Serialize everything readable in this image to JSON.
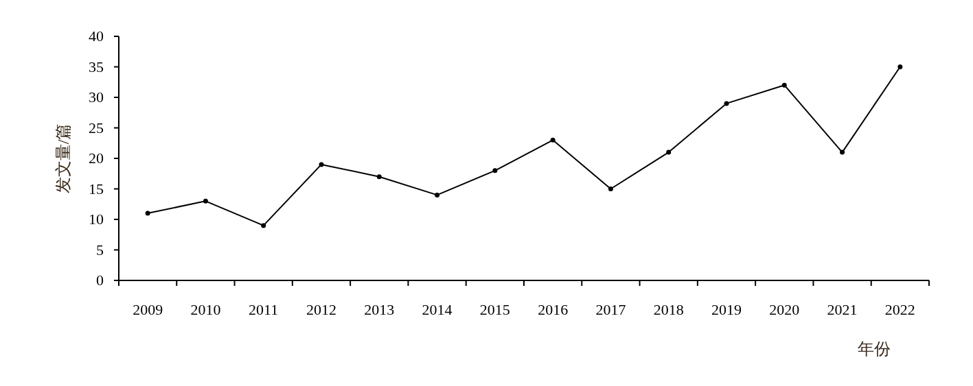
{
  "chart_data": {
    "type": "line",
    "xlabel": "年份",
    "ylabel": "发文量/篇",
    "categories": [
      "2009",
      "2010",
      "2011",
      "2012",
      "2013",
      "2014",
      "2015",
      "2016",
      "2017",
      "2018",
      "2019",
      "2020",
      "2021",
      "2022"
    ],
    "values": [
      11,
      13,
      9,
      19,
      17,
      14,
      18,
      23,
      15,
      21,
      29,
      32,
      21,
      35
    ],
    "color": "#000000",
    "marker": "circle",
    "line_style": "solid",
    "grid": false,
    "ylim": [
      0,
      40
    ],
    "yticks": [
      0,
      5,
      10,
      15,
      20,
      25,
      30,
      35,
      40
    ]
  }
}
